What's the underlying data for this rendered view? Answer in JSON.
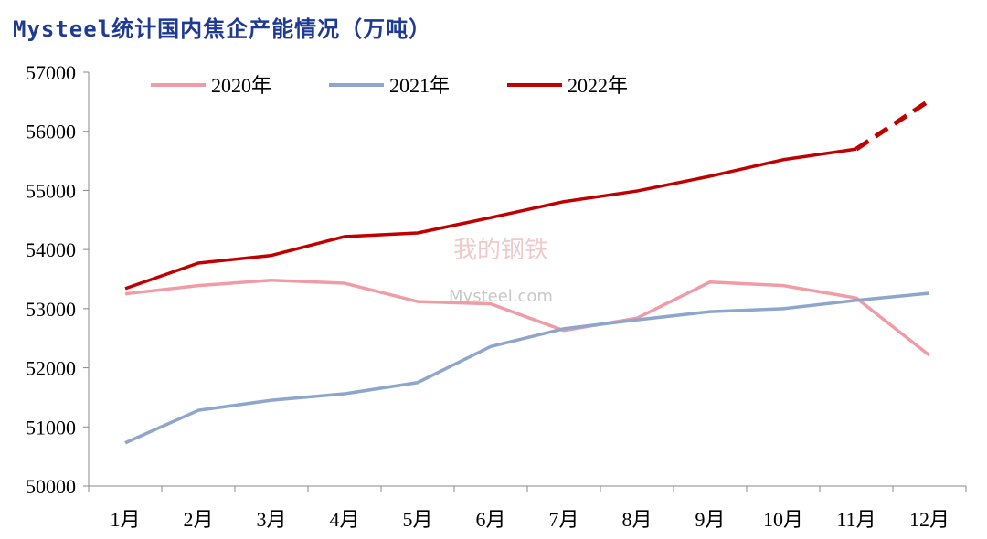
{
  "chart_data": {
    "type": "line",
    "title": "Mysteel统计国内焦企产能情况（万吨）",
    "xlabel": "",
    "ylabel": "",
    "categories": [
      "1月",
      "2月",
      "3月",
      "4月",
      "5月",
      "6月",
      "7月",
      "8月",
      "9月",
      "10月",
      "11月",
      "12月"
    ],
    "ylim": [
      50000,
      57000
    ],
    "yticks": [
      50000,
      51000,
      52000,
      53000,
      54000,
      55000,
      56000,
      57000
    ],
    "grid": false,
    "legend_position": "top",
    "series": [
      {
        "name": "2020年",
        "color": "#f09ca6",
        "values": [
          53250,
          53390,
          53480,
          53430,
          53120,
          53080,
          52630,
          52840,
          53450,
          53390,
          53180,
          52210
        ]
      },
      {
        "name": "2021年",
        "color": "#8ea5cc",
        "values": [
          50730,
          51280,
          51450,
          51560,
          51750,
          52360,
          52660,
          52810,
          52950,
          53000,
          53140,
          53260
        ]
      },
      {
        "name": "2022年",
        "color": "#c00000",
        "values": [
          53340,
          53770,
          53900,
          54220,
          54280,
          54540,
          54810,
          54990,
          55240,
          55520,
          55700,
          56520
        ],
        "dashed_from_index": 10
      }
    ],
    "watermark": "我的钢铁 Mysteel.com"
  }
}
